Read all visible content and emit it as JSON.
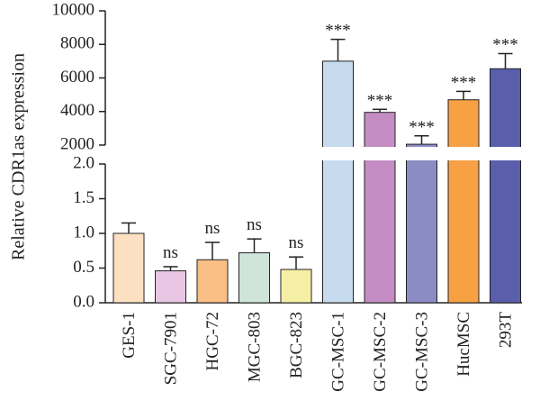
{
  "chart_data": {
    "type": "bar",
    "ylabel": "Relative CDR1as expression",
    "categories": [
      "GES-1",
      "SGC-7901",
      "HGC-72",
      "MGC-803",
      "BGC-823",
      "GC-MSC-1",
      "GC-MSC-2",
      "GC-MSC-3",
      "HucMSC",
      "293T"
    ],
    "values": [
      1.0,
      0.46,
      0.62,
      0.72,
      0.48,
      7000,
      3950,
      2050,
      4700,
      6550
    ],
    "error": [
      0.15,
      0.06,
      0.25,
      0.2,
      0.18,
      1300,
      180,
      500,
      500,
      900
    ],
    "significance": [
      "",
      "ns",
      "ns",
      "ns",
      "ns",
      "***",
      "***",
      "***",
      "***",
      "***"
    ],
    "colors": [
      "#fde0c2",
      "#e9c6e3",
      "#f9bf85",
      "#cfe5da",
      "#f6f0a6",
      "#c7dbef",
      "#c48dc3",
      "#8c8cc4",
      "#f8a044",
      "#5a5eab"
    ],
    "y_axis_broken": true,
    "lower_segment": {
      "ylim": [
        0,
        2.0
      ],
      "ticks": [
        "0.0",
        "0.5",
        "1.0",
        "1.5",
        "2.0"
      ]
    },
    "upper_segment": {
      "ylim": [
        2000,
        10000
      ],
      "ticks": [
        "2000",
        "4000",
        "6000",
        "8000",
        "10000"
      ]
    }
  }
}
